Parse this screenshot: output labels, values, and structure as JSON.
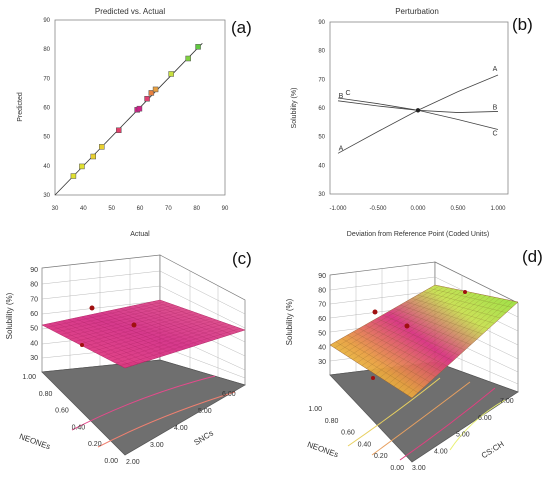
{
  "chart_data": [
    {
      "panel": "(a)",
      "type": "scatter",
      "title": "Predicted vs. Actual",
      "xlabel": "Actual",
      "ylabel": "Predicted",
      "xlim": [
        30,
        90
      ],
      "ylim": [
        30,
        90
      ],
      "xticks": [
        "30",
        "40",
        "50",
        "60",
        "70",
        "80",
        "90"
      ],
      "yticks": [
        "30",
        "40",
        "50",
        "60",
        "70",
        "80",
        "90"
      ],
      "points": [
        {
          "x": 36.5,
          "y": 36.5,
          "color": "#e0e030"
        },
        {
          "x": 39.5,
          "y": 39.8,
          "color": "#e0e030"
        },
        {
          "x": 43.5,
          "y": 43.2,
          "color": "#e8d030"
        },
        {
          "x": 46.5,
          "y": 46.5,
          "color": "#e8d030"
        },
        {
          "x": 52.5,
          "y": 52.2,
          "color": "#e0406a"
        },
        {
          "x": 59.0,
          "y": 59.2,
          "color": "#d0208a"
        },
        {
          "x": 59.8,
          "y": 59.6,
          "color": "#d0208a"
        },
        {
          "x": 62.5,
          "y": 63.0,
          "color": "#e04070"
        },
        {
          "x": 64.0,
          "y": 65.0,
          "color": "#e88040"
        },
        {
          "x": 65.5,
          "y": 66.2,
          "color": "#e8a040"
        },
        {
          "x": 71.0,
          "y": 71.5,
          "color": "#c8e040"
        },
        {
          "x": 77.0,
          "y": 76.8,
          "color": "#80d040"
        },
        {
          "x": 80.5,
          "y": 80.8,
          "color": "#60c840"
        }
      ],
      "fit_line": {
        "x": [
          30,
          82
        ],
        "y": [
          30,
          82
        ]
      }
    },
    {
      "panel": "(b)",
      "type": "line",
      "title": "Perturbation",
      "xlabel": "Deviation from Reference Point (Coded Units)",
      "ylabel": "Solubility (%)",
      "xlim": [
        -1,
        1
      ],
      "ylim": [
        30,
        90
      ],
      "xticks": [
        "-1.000",
        "-0.500",
        "0.000",
        "0.500",
        "1.000"
      ],
      "yticks": [
        "30",
        "40",
        "50",
        "60",
        "70",
        "80",
        "90"
      ],
      "reference_point": {
        "x": 0,
        "y": 59.2
      },
      "series": [
        {
          "name": "A",
          "x": [
            -1,
            -0.5,
            0,
            0.5,
            1
          ],
          "y": [
            44.2,
            51.8,
            59.2,
            65.7,
            71.5
          ]
        },
        {
          "name": "B",
          "x": [
            -1,
            -0.5,
            0,
            0.5,
            1
          ],
          "y": [
            62.5,
            60.7,
            59.2,
            58.4,
            58.8
          ]
        },
        {
          "name": "C",
          "x": [
            -1,
            -0.5,
            0,
            0.5,
            1
          ],
          "y": [
            63.5,
            61.5,
            59.2,
            56.0,
            52.5
          ]
        }
      ]
    },
    {
      "panel": "(c)",
      "type": "surface3d",
      "xlabel": "SNCs",
      "ylabel": "NEONEs",
      "zlabel": "Solubility (%)",
      "xlim": [
        2,
        6
      ],
      "ylim": [
        0,
        1
      ],
      "zlim": [
        30,
        90
      ],
      "xticks": [
        "2.00",
        "3.00",
        "4.00",
        "5.00",
        "6.00"
      ],
      "yticks": [
        "0.00",
        "0.20",
        "0.40",
        "0.60",
        "0.80",
        "1.00"
      ],
      "zticks": [
        "30",
        "40",
        "50",
        "60",
        "70",
        "80",
        "90"
      ]
    },
    {
      "panel": "(d)",
      "type": "surface3d",
      "xlabel": "CS:CH",
      "ylabel": "NEONEs",
      "zlabel": "Solubility (%)",
      "xlim": [
        3,
        7
      ],
      "ylim": [
        0,
        1
      ],
      "zlim": [
        30,
        90
      ],
      "xticks": [
        "3.00",
        "4.00",
        "5.00",
        "6.00",
        "7.00"
      ],
      "yticks": [
        "0.00",
        "0.20",
        "0.40",
        "0.60",
        "0.80",
        "1.00"
      ],
      "zticks": [
        "30",
        "40",
        "50",
        "60",
        "70",
        "80",
        "90"
      ]
    }
  ]
}
